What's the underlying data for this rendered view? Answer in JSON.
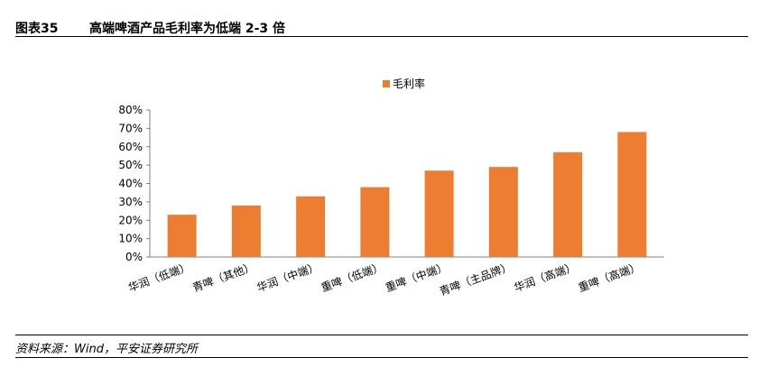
{
  "figure": {
    "label": "图表35",
    "title": "高端啤酒产品毛利率为低端 2-3 倍"
  },
  "chart_data": {
    "type": "bar",
    "categories": [
      "华润（低端）",
      "青啤（其他）",
      "华润（中端）",
      "重啤（低端）",
      "重啤（中端）",
      "青啤（主品牌）",
      "华润（高端）",
      "重啤（高端）"
    ],
    "series": [
      {
        "name": "毛利率",
        "values": [
          23,
          28,
          33,
          38,
          47,
          49,
          57,
          68
        ],
        "color": "#ED7D31"
      }
    ],
    "ylim": [
      0,
      80
    ],
    "yticks": [
      0,
      10,
      20,
      30,
      40,
      50,
      60,
      70,
      80
    ],
    "ytick_labels": [
      "0%",
      "10%",
      "20%",
      "30%",
      "40%",
      "50%",
      "60%",
      "70%",
      "80%"
    ],
    "legend_position": "top-center",
    "grid": false
  },
  "source": {
    "text": "资料来源：Wind，平安证券研究所"
  }
}
